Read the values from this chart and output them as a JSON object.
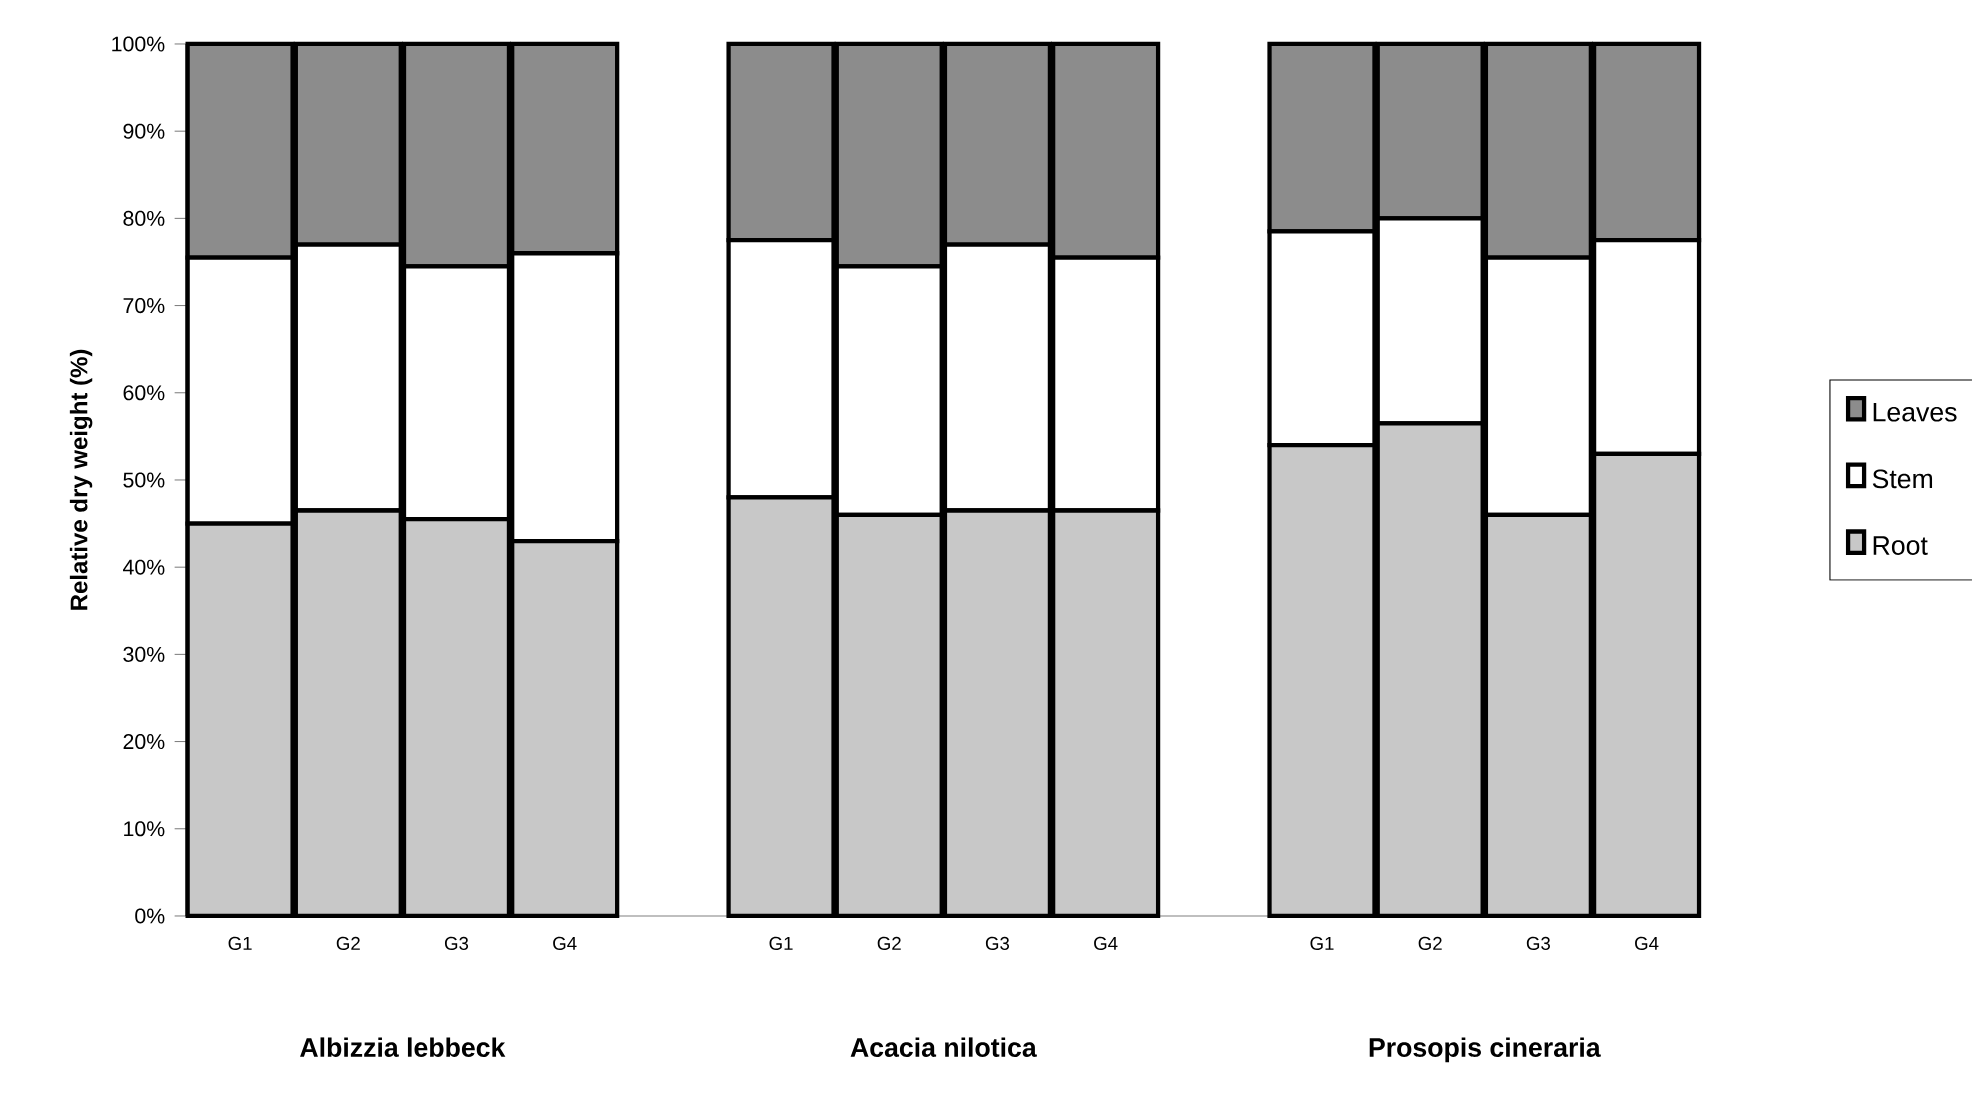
{
  "chart_data": {
    "type": "bar",
    "stacked": true,
    "ylabel": "Relative dry weight (%)",
    "categories": [
      "G1",
      "G2",
      "G3",
      "G4",
      null,
      "G1",
      "G2",
      "G3",
      "G4",
      null,
      "G1",
      "G2",
      "G3",
      "G4"
    ],
    "series": [
      {
        "name": "Root",
        "color": "#c8c8c8",
        "values": [
          45,
          46.5,
          45.5,
          43,
          null,
          48,
          46,
          46.5,
          46.5,
          null,
          54,
          56.5,
          46,
          53
        ]
      },
      {
        "name": "Stem",
        "color": "#ffffff",
        "values": [
          30.5,
          30.5,
          29,
          33,
          null,
          29.5,
          28.5,
          30.5,
          29,
          null,
          24.5,
          23.5,
          29.5,
          24.5
        ]
      },
      {
        "name": "Leaves",
        "color": "#8c8c8c",
        "values": [
          24.5,
          23,
          25.5,
          24,
          null,
          22.5,
          25.5,
          23,
          24.5,
          null,
          21.5,
          20,
          24.5,
          22.5
        ]
      }
    ],
    "ylim": [
      0,
      100
    ],
    "yticks": [
      {
        "value": 0,
        "label": "0%"
      },
      {
        "value": 10,
        "label": "10%"
      },
      {
        "value": 20,
        "label": "20%"
      },
      {
        "value": 30,
        "label": "30%"
      },
      {
        "value": 40,
        "label": "40%"
      },
      {
        "value": 50,
        "label": "50%"
      },
      {
        "value": 60,
        "label": "60%"
      },
      {
        "value": 70,
        "label": "70%"
      },
      {
        "value": 80,
        "label": "80%"
      },
      {
        "value": 90,
        "label": "90%"
      },
      {
        "value": 100,
        "label": "100%"
      }
    ],
    "legend": "right",
    "annotations": [
      "Albizzia lebbeck",
      "Acacia nilotica",
      "Prosopis cineraria"
    ]
  }
}
